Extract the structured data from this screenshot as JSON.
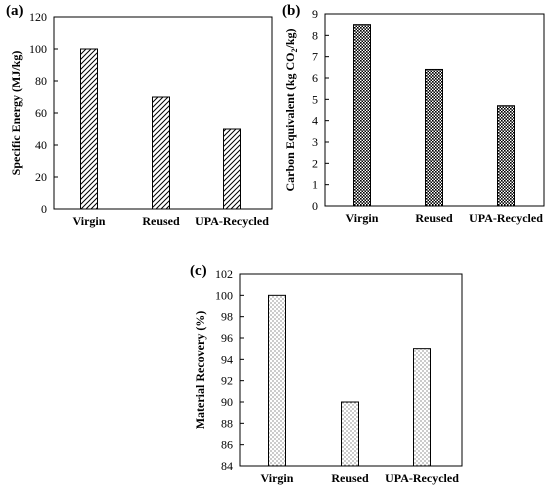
{
  "chart_data": [
    {
      "type": "bar",
      "panel": "(a)",
      "categories": [
        "Virgin",
        "Reused",
        "UPA-Recycled"
      ],
      "values": [
        100,
        70,
        50
      ],
      "ylabel": "Specific Energy (MJ/kg)",
      "ylim": [
        0,
        120
      ],
      "yticks": [
        0,
        20,
        40,
        60,
        80,
        100,
        120
      ],
      "pattern": "diagonal-hatch",
      "grid": false
    },
    {
      "type": "bar",
      "panel": "(b)",
      "categories": [
        "Virgin",
        "Reused",
        "UPA-Recycled"
      ],
      "values": [
        8.5,
        6.4,
        4.7
      ],
      "ylabel": {
        "prefix": "Carbon Equivalent (kg CO",
        "sub": "2",
        "suffix": "/kg)"
      },
      "ylim": [
        0,
        9
      ],
      "yticks": [
        0,
        1,
        2,
        3,
        4,
        5,
        6,
        7,
        8,
        9
      ],
      "pattern": "dense-dots",
      "grid": false
    },
    {
      "type": "bar",
      "panel": "(c)",
      "categories": [
        "Virgin",
        "Reused",
        "UPA-Recycled"
      ],
      "values": [
        100,
        90,
        95
      ],
      "ylabel": "Material Recovery (%)",
      "ylim": [
        84,
        102
      ],
      "yticks": [
        84,
        86,
        88,
        90,
        92,
        94,
        96,
        98,
        100,
        102
      ],
      "pattern": "sparse-dots",
      "grid": false
    }
  ]
}
